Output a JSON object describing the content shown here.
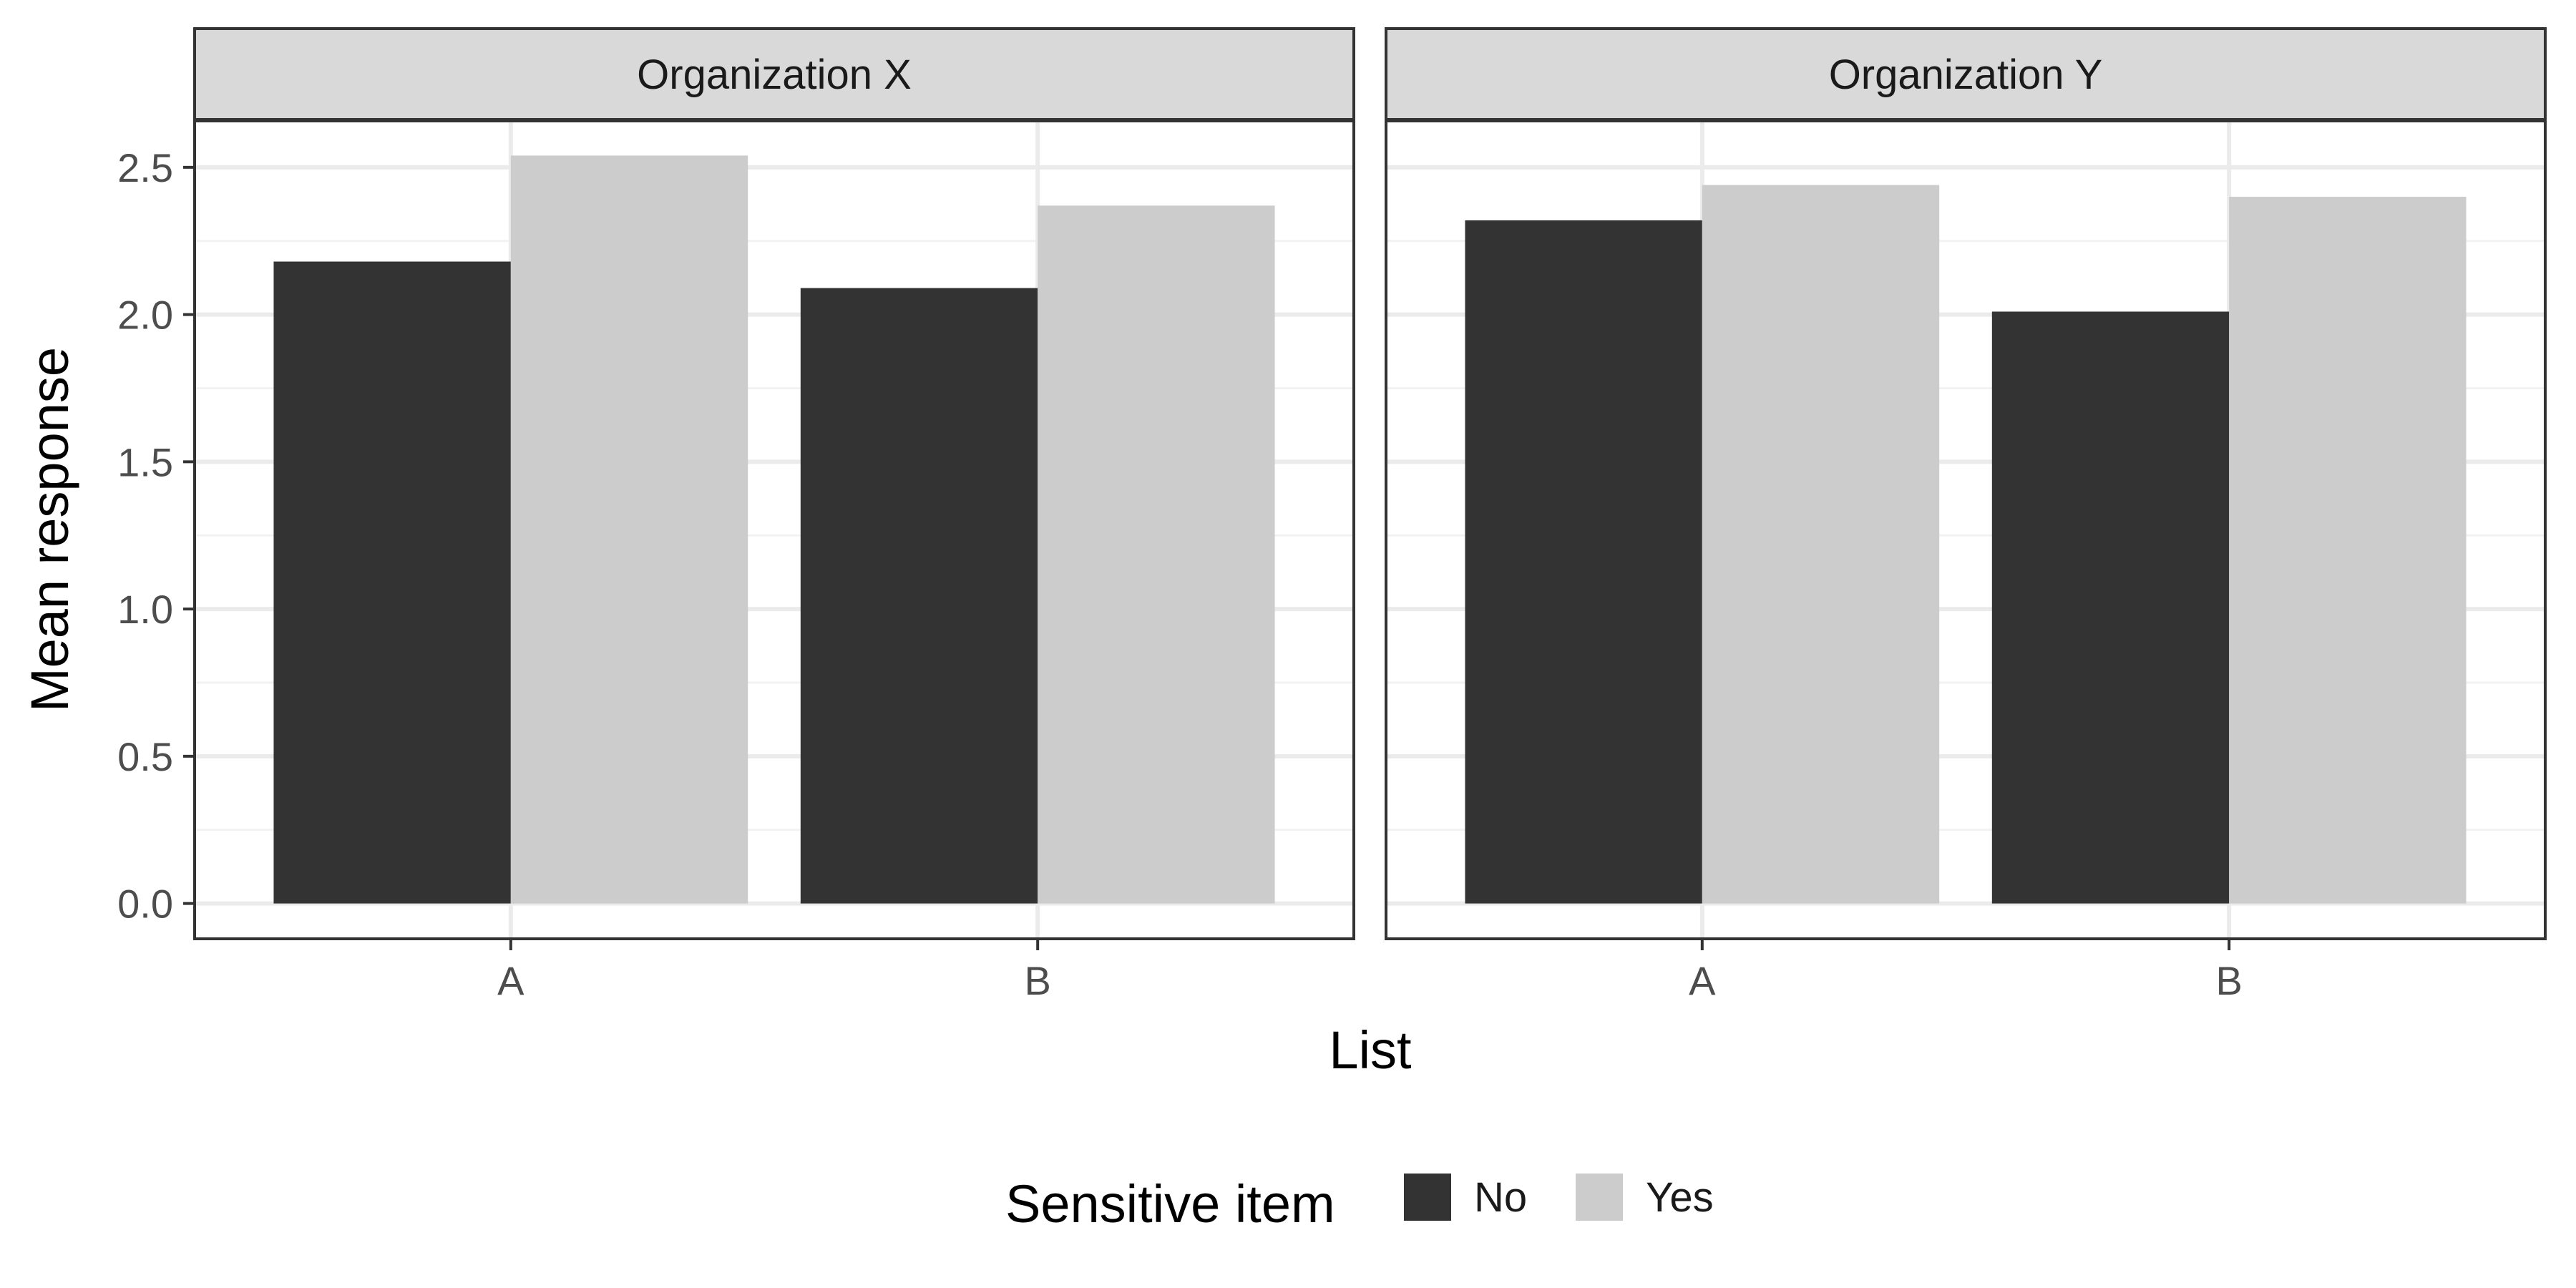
{
  "chart_data": {
    "type": "bar",
    "facet_by": "Organization",
    "panels": [
      {
        "label": "Organization X",
        "categories": [
          "A",
          "B"
        ],
        "series": [
          {
            "name": "No",
            "values": [
              2.18,
              2.09
            ]
          },
          {
            "name": "Yes",
            "values": [
              2.54,
              2.37
            ]
          }
        ]
      },
      {
        "label": "Organization Y",
        "categories": [
          "A",
          "B"
        ],
        "series": [
          {
            "name": "No",
            "values": [
              2.32,
              2.01
            ]
          },
          {
            "name": "Yes",
            "values": [
              2.44,
              2.4
            ]
          }
        ]
      }
    ],
    "xlabel": "List",
    "ylabel": "Mean response",
    "ylim": [
      -0.12,
      2.66
    ],
    "yticks": [
      0.0,
      0.5,
      1.0,
      1.5,
      2.0,
      2.5
    ],
    "ytick_labels": [
      "0.0",
      "0.5",
      "1.0",
      "1.5",
      "2.0",
      "2.5"
    ],
    "grid": true,
    "legend": {
      "title": "Sensitive item",
      "position": "bottom",
      "entries": [
        "No",
        "Yes"
      ]
    },
    "colors": {
      "No": "#333333",
      "Yes": "#cccccc"
    }
  }
}
